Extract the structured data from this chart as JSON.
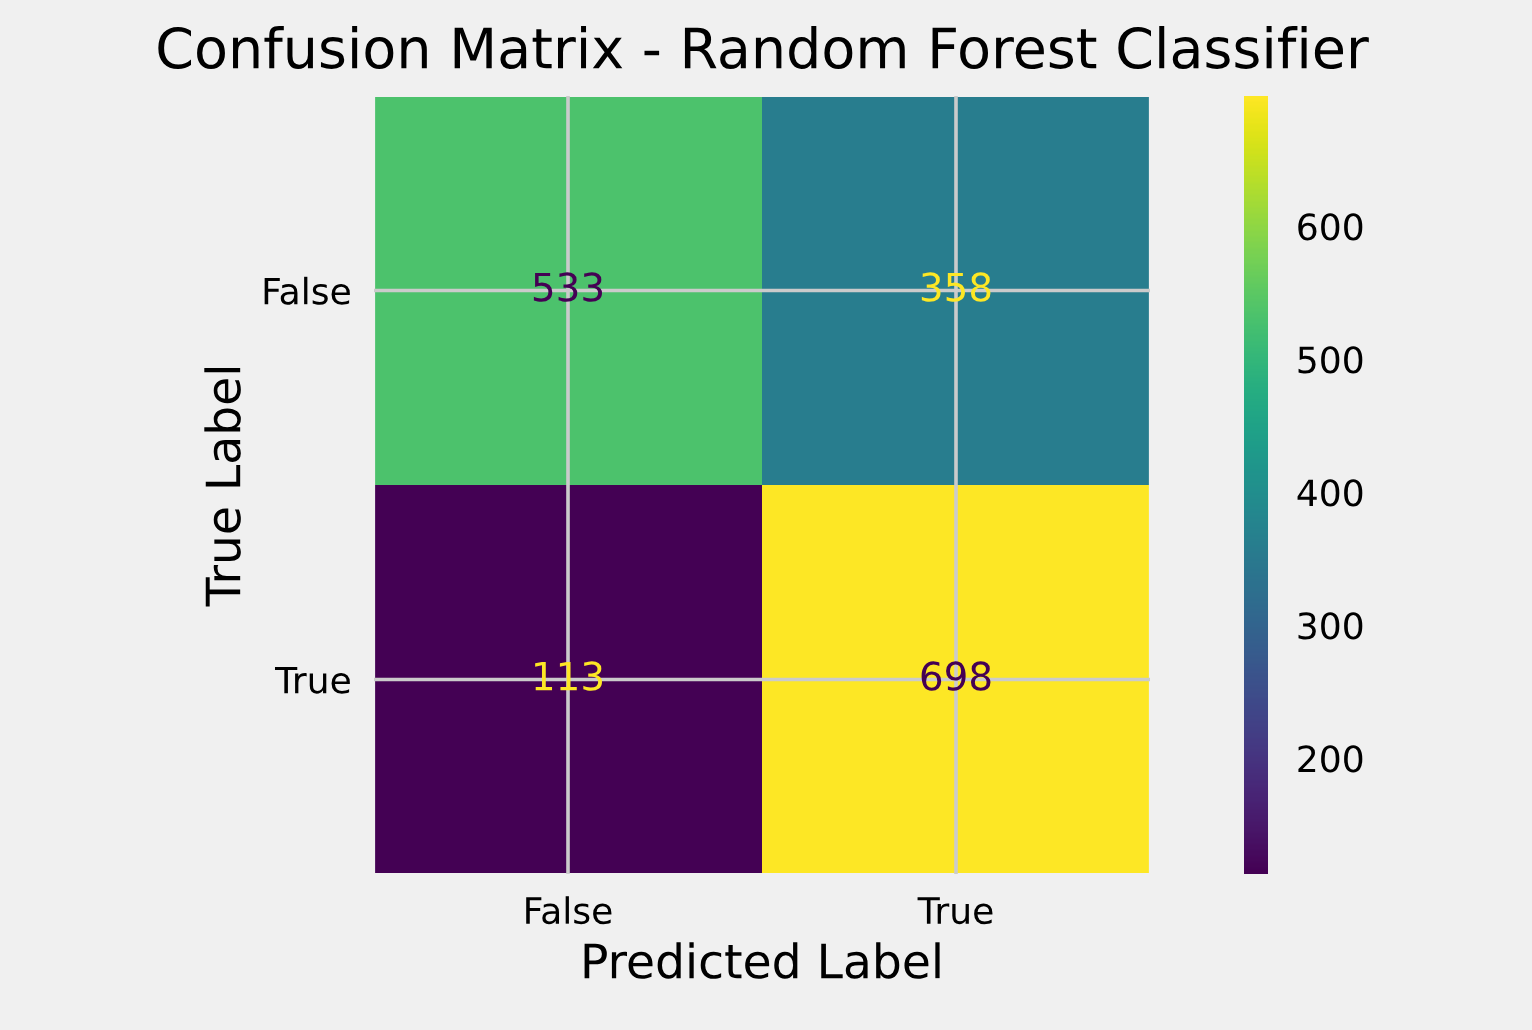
{
  "chart_data": {
    "type": "heatmap",
    "title": "Confusion Matrix - Random Forest Classifier",
    "xlabel": "Predicted Label",
    "ylabel": "True Label",
    "categories": [
      "False",
      "True"
    ],
    "y_categories": [
      "False",
      "True"
    ],
    "cells": [
      [
        533,
        358
      ],
      [
        113,
        698
      ]
    ],
    "clim": [
      113,
      698
    ],
    "cticks": [
      200,
      300,
      400,
      500,
      600
    ],
    "grid": true,
    "data_labels": true
  }
}
